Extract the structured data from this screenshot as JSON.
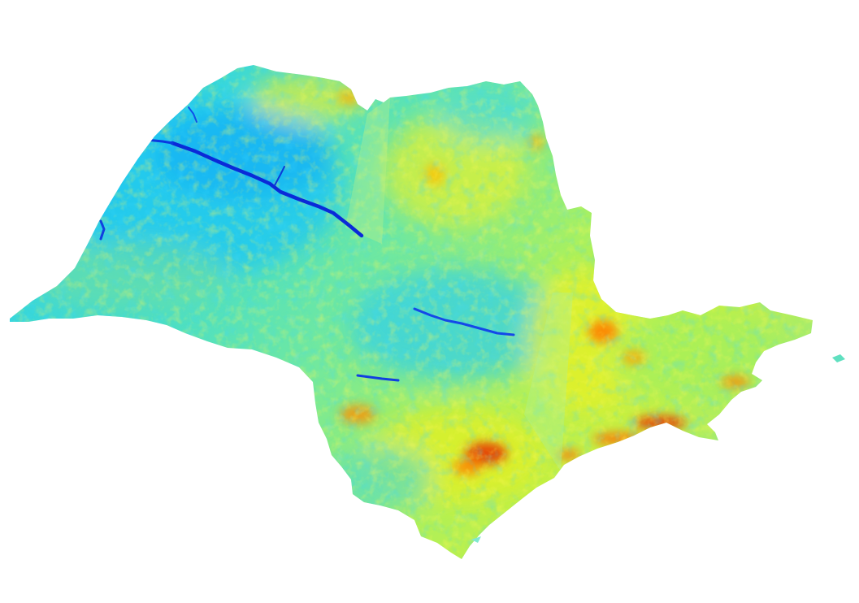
{
  "map": {
    "subject": "raster-map-state-outline",
    "colormap": {
      "name": "jet",
      "stops": [
        "#0000cc",
        "#0060ff",
        "#00c0ff",
        "#30e0e0",
        "#80f090",
        "#d8f040",
        "#f8f800",
        "#ffc000",
        "#ff6000",
        "#cc0000"
      ]
    },
    "background_color": "#ffffff",
    "regions": {
      "northwest": "cyan-blue",
      "center": "cyan-green",
      "east": "yellow-green",
      "southeast-coast": "yellow-orange-red"
    }
  }
}
